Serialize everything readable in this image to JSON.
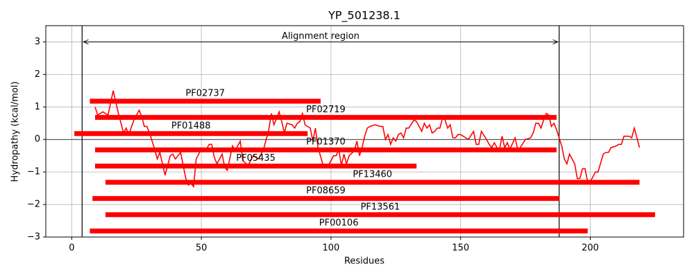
{
  "chart_data": {
    "type": "hydropathy",
    "title": "YP_501238.1",
    "xlabel": "Residues",
    "ylabel": "Hydropathy (kcal/mol)",
    "xlim": [
      -10,
      236
    ],
    "ylim": [
      -3,
      3.5
    ],
    "xticks": [
      0,
      50,
      100,
      150,
      200
    ],
    "yticks": [
      {
        "value": -3,
        "label": "−3"
      },
      {
        "value": -2,
        "label": "−2"
      },
      {
        "value": -1,
        "label": "−1"
      },
      0,
      1,
      2,
      3
    ],
    "grid": true,
    "alignment": {
      "label": "Alignment region",
      "start": 4,
      "end": 188
    },
    "series": [
      {
        "color": "#ff0000",
        "x": [
          9,
          10,
          12,
          14,
          16,
          18,
          19,
          20,
          21,
          22,
          24,
          26,
          27,
          28,
          29,
          30,
          32,
          33,
          34,
          36,
          38,
          39,
          40,
          42,
          44,
          45,
          46,
          47,
          48,
          50,
          52,
          53,
          54,
          55,
          56,
          58,
          59,
          60,
          62,
          63,
          65,
          66,
          68,
          70,
          72,
          74,
          76,
          77,
          78,
          80,
          81,
          82,
          83,
          85,
          86,
          87,
          88,
          89,
          90,
          92,
          93,
          94,
          95,
          97,
          99,
          101,
          102,
          103,
          104,
          105,
          106,
          107,
          109,
          110,
          111,
          112,
          113,
          114,
          115,
          117,
          119,
          120,
          121,
          122,
          123,
          124,
          125,
          126,
          127,
          128,
          129,
          130,
          132,
          133,
          135,
          136,
          137,
          138,
          139,
          140,
          141,
          142,
          143,
          144,
          145,
          146,
          147,
          148,
          149,
          150,
          152,
          153,
          155,
          156,
          157,
          158,
          160,
          161,
          162,
          163,
          164,
          165,
          166,
          167,
          168,
          169,
          171,
          172,
          173,
          175,
          177,
          178,
          179,
          180,
          181,
          182,
          183,
          184,
          185,
          186,
          187,
          189,
          190,
          191,
          192,
          194,
          195,
          196,
          197,
          198,
          199,
          200,
          201,
          202,
          203,
          205,
          206,
          207,
          208,
          210,
          211,
          212,
          213,
          215,
          216,
          217,
          218,
          219
        ],
        "values": [
          1.0,
          0.75,
          0.85,
          0.75,
          1.5,
          0.8,
          0.5,
          0.2,
          0.35,
          0.15,
          0.6,
          0.9,
          0.7,
          0.4,
          0.4,
          0.2,
          -0.3,
          -0.6,
          -0.4,
          -1.1,
          -0.5,
          -0.45,
          -0.6,
          -0.4,
          -1.2,
          -1.4,
          -1.35,
          -1.45,
          -0.6,
          -0.3,
          -0.3,
          -0.15,
          -0.15,
          -0.55,
          -0.75,
          -0.45,
          -0.85,
          -0.95,
          -0.2,
          -0.35,
          -0.05,
          -0.65,
          -0.8,
          -0.5,
          -0.6,
          -0.3,
          0.3,
          0.8,
          0.45,
          0.85,
          0.55,
          0.2,
          0.5,
          0.45,
          0.35,
          0.5,
          0.55,
          0.8,
          0.45,
          0.35,
          -0.05,
          0.35,
          -0.25,
          -0.8,
          -0.8,
          -0.5,
          -0.5,
          -0.3,
          -0.8,
          -0.45,
          -0.75,
          -0.5,
          -0.35,
          -0.05,
          -0.5,
          -0.25,
          0.1,
          0.35,
          0.4,
          0.45,
          0.4,
          0.4,
          0.0,
          0.15,
          -0.15,
          0.05,
          -0.05,
          0.15,
          0.2,
          0.05,
          0.35,
          0.35,
          0.6,
          0.55,
          0.25,
          0.5,
          0.35,
          0.45,
          0.2,
          0.25,
          0.35,
          0.35,
          0.65,
          0.6,
          0.35,
          0.45,
          0.05,
          0.05,
          0.15,
          0.15,
          0.05,
          0.0,
          0.25,
          -0.15,
          -0.15,
          0.25,
          0.0,
          -0.15,
          -0.25,
          -0.1,
          -0.25,
          -0.3,
          0.1,
          -0.25,
          -0.1,
          -0.3,
          0.05,
          -0.3,
          -0.25,
          0.0,
          0.05,
          0.2,
          0.5,
          0.5,
          0.35,
          0.6,
          0.8,
          0.75,
          0.4,
          0.5,
          0.3,
          -0.2,
          -0.6,
          -0.75,
          -0.45,
          -0.75,
          -1.2,
          -1.2,
          -0.9,
          -0.9,
          -1.3,
          -1.3,
          -1.15,
          -1.0,
          -1.0,
          -0.45,
          -0.4,
          -0.4,
          -0.25,
          -0.2,
          -0.15,
          -0.15,
          0.1,
          0.1,
          0.05,
          0.35,
          0.05,
          -0.25
        ]
      }
    ],
    "domains": [
      {
        "name": "PF02737",
        "start": 7,
        "end": 96
      },
      {
        "name": "PF02719",
        "start": 9,
        "end": 187
      },
      {
        "name": "PF01488",
        "start": 1,
        "end": 91
      },
      {
        "name": "PF01370",
        "start": 9,
        "end": 187
      },
      {
        "name": "PF05435",
        "start": 9,
        "end": 133
      },
      {
        "name": "PF13460",
        "start": 13,
        "end": 219
      },
      {
        "name": "PF08659",
        "start": 8,
        "end": 188
      },
      {
        "name": "PF13561",
        "start": 13,
        "end": 225
      },
      {
        "name": "PF00106",
        "start": 7,
        "end": 199
      }
    ]
  }
}
